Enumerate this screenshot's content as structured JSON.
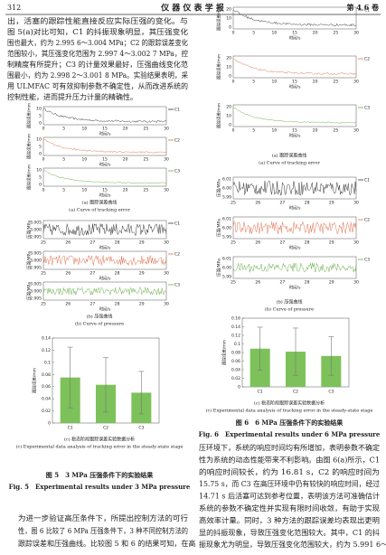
{
  "header": {
    "page": "312",
    "journal": "仪 器 仪 表 学 报",
    "volume": "第 4 6 卷"
  },
  "paragraph_1": [
    "出，活塞的跟踪性能直接反应实际压强的变化。与",
    "图 5(a)对比可知，C1 的抖振现象明显，其压强变化",
    "围也最大，约为 2.995 6～3.004 MPa；C2 的跟踪误差变化",
    "范围较小，其压强变化范围为 2.997 4～3.002 7 MPa，控",
    "制精度有所提升；C3 的计量效果最好，压强曲线变化范",
    "围最小，约为 2.998 2～3.001 8 MPa。实验结果表明，采",
    "用 ULMFAC 可有效抑制参数不确定性，从而改进系统的",
    "控制性能，进而提升压力计量的精确性。"
  ],
  "figure_5": {
    "a": {
      "xlabel": "时间/s",
      "xticks": [
        "0",
        "5",
        "10",
        "15",
        "20",
        "25",
        "30"
      ],
      "plots": [
        {
          "legend": "C1",
          "color": "#333333",
          "ylabel": "跟踪误差/mm",
          "yticks": [
            "10",
            "5",
            "0"
          ]
        },
        {
          "legend": "C2",
          "color": "#e0714f",
          "ylabel": "跟踪误差/mm",
          "yticks": [
            "10",
            "5",
            "0"
          ]
        },
        {
          "legend": "C3",
          "color": "#6aae4a",
          "ylabel": "跟踪误差/mm",
          "yticks": [
            "10",
            "5",
            "0"
          ]
        }
      ],
      "caption_cn": "(a) 跟踪误差曲线",
      "caption_en": "(a) Curve of tracking error"
    },
    "b": {
      "xlabel": "时间/s",
      "xticks": [
        "25",
        "26",
        "27",
        "28",
        "29",
        "30"
      ],
      "plots": [
        {
          "legend": "C1",
          "color": "#333333",
          "ylabel": "压强/MPa",
          "yticks": [
            "3.005",
            "3.000",
            "2.995"
          ]
        },
        {
          "legend": "C2",
          "color": "#e0714f",
          "ylabel": "压强/MPa",
          "yticks": [
            "3.005",
            "3.000",
            "2.995"
          ]
        },
        {
          "legend": "C3",
          "color": "#6aae4a",
          "ylabel": "压强/MPa",
          "yticks": [
            "3.005",
            "3.000",
            "2.995"
          ]
        }
      ],
      "caption_cn": "(b) 压强曲线",
      "caption_en": "(b) Curve of pressure"
    },
    "c": {
      "type": "bar",
      "ylabel": "跟踪误差/mm",
      "categories": [
        "C1",
        "C2",
        "C3"
      ],
      "values": [
        0.075,
        0.063,
        0.05
      ],
      "errors": [
        0.05,
        0.045,
        0.035
      ],
      "color": "#7dc15a",
      "ylim": [
        0,
        0.14
      ],
      "yticks": [
        0,
        0.02,
        0.04,
        0.06,
        0.08,
        0.1,
        0.12,
        0.14
      ],
      "caption_cn": "(c) 稳态阶段跟踪误差实验数据分析",
      "caption_en": "(c) Experimental data analysis of tracking error in the steady-state stage"
    },
    "caption_cn": "图 5　3 MPa 压强条件下的实验结果",
    "caption_en": "Fig. 5　Experimental results under 3 MPa pressure"
  },
  "paragraph_2": [
    "为进一步验证高压条件下，所提出控制方法的可行",
    "性，图 6 比较了 6 MPa 压强条件下，3 种不同控制方法的",
    "跟踪误差和压强曲线。比较图 5 和 6 的结果可知，在高"
  ],
  "figure_6": {
    "a": {
      "xlabel": "时间/s",
      "xticks": [
        "0",
        "5",
        "10",
        "15",
        "20",
        "25",
        "30"
      ],
      "plots": [
        {
          "legend": "C1",
          "color": "#333333",
          "ylabel": "跟踪误差/mm",
          "yticks": [
            "20",
            "10",
            "0"
          ]
        },
        {
          "legend": "C2",
          "color": "#e0714f",
          "ylabel": "跟踪误差/mm",
          "yticks": [
            "20",
            "10",
            "0"
          ]
        },
        {
          "legend": "C3",
          "color": "#6aae4a",
          "ylabel": "跟踪误差/mm",
          "yticks": [
            "20",
            "10",
            "0"
          ]
        }
      ],
      "caption_cn": "(a) 跟踪误差曲线",
      "caption_en": "(a) Curve of tracking error"
    },
    "b": {
      "xlabel": "时间/s",
      "xticks": [
        "25",
        "26",
        "27",
        "28",
        "29",
        "30"
      ],
      "plots": [
        {
          "legend": "C1",
          "color": "#333333",
          "ylabel": "压强/MPa",
          "yticks": [
            "6.01",
            "6.00",
            "5.99"
          ]
        },
        {
          "legend": "C2",
          "color": "#e0714f",
          "ylabel": "压强/MPa",
          "yticks": [
            "6.01",
            "6.00",
            "5.99"
          ]
        },
        {
          "legend": "C3",
          "color": "#6aae4a",
          "ylabel": "压强/MPa",
          "yticks": [
            "6.01",
            "6.00",
            "5.99"
          ]
        }
      ],
      "caption_cn": "(b) 压强曲线",
      "caption_en": "(b) Curve of pressure"
    },
    "c": {
      "type": "bar",
      "ylabel": "跟踪误差/mm",
      "categories": [
        "C1",
        "C2",
        "C3"
      ],
      "values": [
        0.089,
        0.082,
        0.072
      ],
      "errors": [
        0.05,
        0.055,
        0.045
      ],
      "color": "#7dc15a",
      "ylim": [
        0,
        0.16
      ],
      "yticks": [
        0,
        0.02,
        0.04,
        0.06,
        0.08,
        0.1,
        0.12,
        0.14,
        0.16
      ],
      "caption_cn": "(c) 稳态阶段跟踪误差实验数据分析",
      "caption_en": "(c) Experimental data analysis of tracking error in the steady-state stage"
    },
    "caption_cn": "图 6　6 MPa 压强条件下的实验结果",
    "caption_en": "Fig. 6　Experimental results under 6 MPa pressure"
  },
  "paragraph_3": [
    "压环境下，系统的响应时间均有所增加，表明参数不确定",
    "性为系统的动态性能带来不利影响。由图 6(a)所示，C1",
    "的响应时间较长，约为 16.81 s，C2 的响应时间为",
    "15.75 s，而 C3 在高压环境中仍有较快的响应时间，经过",
    "14.71 s 后活塞可达到参考位置，表明该方法可准确估计",
    "系统的参数不确定性并实现有限时间收敛，有助于实现",
    "高效率计量。同时，3 种方法的跟踪误差均表现出更明",
    "显的抖振现象，导致压强变化范围较大。其中，C1 的抖",
    "振现象尤为明显，导致压强变化范围较大，约为 5.991 6～"
  ]
}
